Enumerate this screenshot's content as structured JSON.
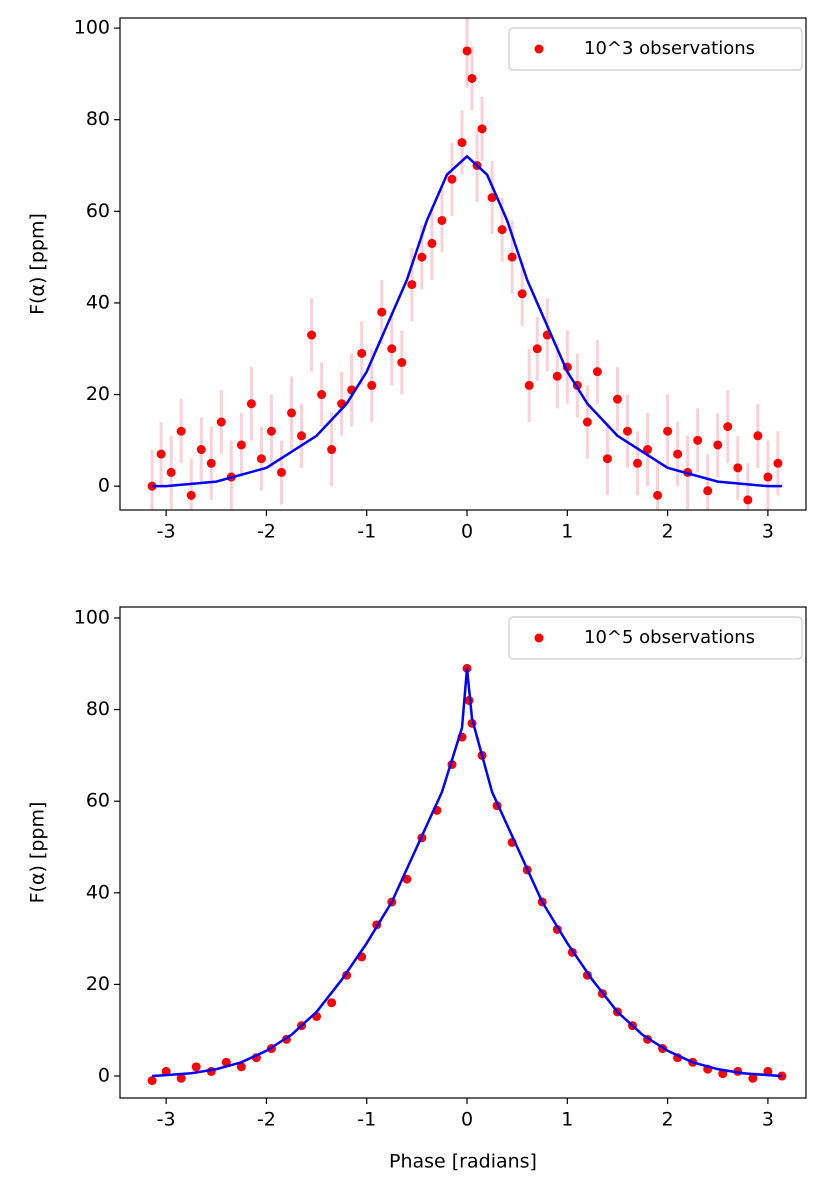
{
  "chart_data": [
    {
      "type": "scatter",
      "ylabel": "F(α) [ppm]",
      "xlim": [
        -3.46,
        3.38
      ],
      "ylim": [
        -5.2,
        102.2
      ],
      "xticks": [
        -3,
        -2,
        -1,
        0,
        1,
        2,
        3
      ],
      "yticks": [
        0,
        20,
        40,
        60,
        80,
        100
      ],
      "legend": "upper right",
      "series": [
        {
          "name": "10^3 observations",
          "type": "scatter",
          "color": "#ff0000",
          "error_color": "#f7c6d0",
          "x": [
            -3.14,
            -3.05,
            -2.95,
            -2.85,
            -2.75,
            -2.65,
            -2.55,
            -2.45,
            -2.35,
            -2.25,
            -2.15,
            -2.05,
            -1.95,
            -1.85,
            -1.75,
            -1.65,
            -1.55,
            -1.45,
            -1.35,
            -1.25,
            -1.15,
            -1.05,
            -0.95,
            -0.85,
            -0.75,
            -0.65,
            -0.55,
            -0.45,
            -0.35,
            -0.25,
            -0.15,
            -0.05,
            0,
            0.05,
            0.1,
            0.15,
            0.25,
            0.35,
            0.45,
            0.55,
            0.62,
            0.7,
            0.8,
            0.9,
            1.0,
            1.1,
            1.2,
            1.3,
            1.4,
            1.5,
            1.6,
            1.7,
            1.8,
            1.9,
            2.0,
            2.1,
            2.2,
            2.3,
            2.4,
            2.5,
            2.6,
            2.7,
            2.8,
            2.9,
            3.0,
            3.1
          ],
          "values": [
            0,
            7,
            3,
            12,
            -2,
            8,
            5,
            14,
            2,
            9,
            18,
            6,
            12,
            3,
            16,
            11,
            33,
            20,
            8,
            18,
            21,
            29,
            22,
            38,
            30,
            27,
            44,
            50,
            53,
            58,
            67,
            75,
            95,
            89,
            70,
            78,
            63,
            56,
            50,
            42,
            22,
            30,
            33,
            24,
            26,
            22,
            14,
            25,
            6,
            19,
            12,
            5,
            8,
            -2,
            12,
            7,
            3,
            10,
            -1,
            9,
            13,
            4,
            -3,
            11,
            2,
            5
          ],
          "errors": [
            8,
            7,
            8,
            7,
            8,
            7,
            8,
            7,
            8,
            7,
            8,
            7,
            8,
            7,
            8,
            7,
            8,
            7,
            8,
            7,
            8,
            7,
            8,
            7,
            8,
            7,
            8,
            7,
            8,
            7,
            8,
            7,
            8,
            7,
            8,
            7,
            8,
            7,
            8,
            7,
            8,
            7,
            8,
            7,
            8,
            7,
            8,
            7,
            8,
            7,
            8,
            7,
            8,
            7,
            8,
            7,
            8,
            7,
            8,
            7,
            8,
            7,
            8,
            7,
            8,
            7
          ]
        },
        {
          "type": "line",
          "color": "#0000ff",
          "x": [
            -3.14,
            -3.0,
            -2.5,
            -2.0,
            -1.5,
            -1.2,
            -1.0,
            -0.8,
            -0.6,
            -0.4,
            -0.2,
            0,
            0.2,
            0.4,
            0.6,
            0.8,
            1.0,
            1.2,
            1.5,
            2.0,
            2.5,
            3.0,
            3.14
          ],
          "values": [
            0,
            0,
            1,
            4,
            11,
            18,
            25,
            35,
            45,
            58,
            68,
            72,
            68,
            58,
            45,
            35,
            25,
            18,
            11,
            4,
            1,
            0,
            0
          ]
        }
      ]
    },
    {
      "type": "scatter",
      "ylabel": "F(α) [ppm]",
      "xlabel": "Phase [radians]",
      "xlim": [
        -3.46,
        3.38
      ],
      "ylim": [
        -4.8,
        102.4
      ],
      "xticks": [
        -3,
        -2,
        -1,
        0,
        1,
        2,
        3
      ],
      "yticks": [
        0,
        20,
        40,
        60,
        80,
        100
      ],
      "legend": "upper right",
      "series": [
        {
          "name": "10^5 observations",
          "type": "scatter",
          "color": "#ff0000",
          "x": [
            -3.14,
            -3.0,
            -2.85,
            -2.7,
            -2.55,
            -2.4,
            -2.25,
            -2.1,
            -1.95,
            -1.8,
            -1.65,
            -1.5,
            -1.35,
            -1.2,
            -1.05,
            -0.9,
            -0.75,
            -0.6,
            -0.45,
            -0.3,
            -0.15,
            -0.05,
            0,
            0.02,
            0.05,
            0.15,
            0.3,
            0.45,
            0.6,
            0.75,
            0.9,
            1.05,
            1.2,
            1.35,
            1.5,
            1.65,
            1.8,
            1.95,
            2.1,
            2.25,
            2.4,
            2.55,
            2.7,
            2.85,
            3.0,
            3.14
          ],
          "values": [
            -1,
            1,
            -0.5,
            2,
            1,
            3,
            2,
            4,
            6,
            8,
            11,
            13,
            16,
            22,
            26,
            33,
            38,
            43,
            52,
            58,
            68,
            74,
            89,
            82,
            77,
            70,
            59,
            51,
            45,
            38,
            32,
            27,
            22,
            18,
            14,
            11,
            8,
            6,
            4,
            3,
            1.5,
            0.5,
            1,
            -0.5,
            1,
            0
          ]
        },
        {
          "type": "line",
          "color": "#0000ff",
          "x": [
            -3.14,
            -3.0,
            -2.75,
            -2.5,
            -2.25,
            -2.0,
            -1.75,
            -1.5,
            -1.25,
            -1.0,
            -0.75,
            -0.5,
            -0.25,
            -0.05,
            0,
            0.05,
            0.25,
            0.5,
            0.75,
            1.0,
            1.25,
            1.5,
            1.75,
            2.0,
            2.25,
            2.5,
            2.75,
            3.0,
            3.14
          ],
          "values": [
            0,
            0.2,
            0.6,
            1.5,
            3,
            5.5,
            9,
            14,
            21,
            29,
            38,
            50,
            62,
            76,
            89,
            78,
            62,
            50,
            38,
            29,
            21,
            14,
            9,
            5.5,
            3,
            1.5,
            0.6,
            0.2,
            0
          ]
        }
      ]
    }
  ]
}
